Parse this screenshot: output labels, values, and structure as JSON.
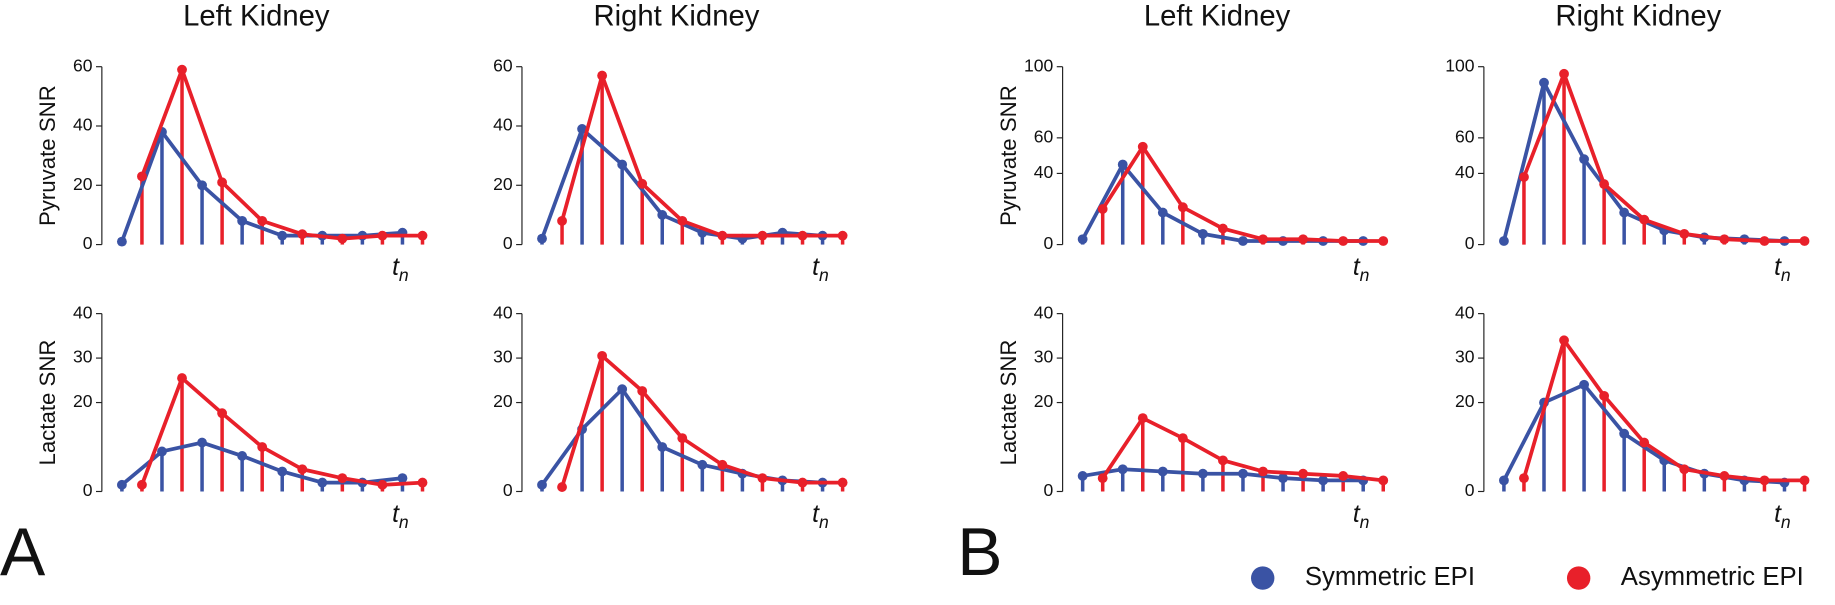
{
  "panel_labels": [
    "A",
    "B"
  ],
  "legend": {
    "position": "bottom-right",
    "entries": [
      {
        "name": "Symmetric EPI",
        "color": "#3a53a4"
      },
      {
        "name": "Asymmetric EPI",
        "color": "#e8202a"
      }
    ]
  },
  "chart_data": [
    {
      "type": "stem",
      "title": "Left Kidney",
      "y_label": "Pyruvate SNR",
      "x_label": "t",
      "x_label_subscript": "n",
      "xlim": [
        -1,
        15
      ],
      "ylim": [
        0,
        60
      ],
      "yticks": [
        0,
        20,
        40,
        60
      ],
      "series": [
        {
          "color": "#3a53a4",
          "x": [
            0,
            2,
            4,
            6,
            8,
            10,
            12,
            14
          ],
          "values": [
            1,
            38,
            20,
            8,
            3,
            3,
            3,
            4
          ]
        },
        {
          "color": "#e8202a",
          "x": [
            1,
            3,
            5,
            7,
            9,
            11,
            13,
            15
          ],
          "values": [
            23,
            59,
            21,
            8,
            3.5,
            2,
            3,
            3
          ]
        }
      ]
    },
    {
      "type": "stem",
      "title": "Right Kidney",
      "x_label": "t",
      "x_label_subscript": "n",
      "xlim": [
        -1,
        15
      ],
      "ylim": [
        0,
        60
      ],
      "yticks": [
        0,
        20,
        40,
        60
      ],
      "series": [
        {
          "color": "#3a53a4",
          "x": [
            0,
            2,
            4,
            6,
            8,
            10,
            12,
            14
          ],
          "values": [
            2,
            39,
            27,
            10,
            4,
            2,
            4,
            3
          ]
        },
        {
          "color": "#e8202a",
          "x": [
            1,
            3,
            5,
            7,
            9,
            11,
            13,
            15
          ],
          "values": [
            8,
            57,
            20.5,
            8,
            3,
            3,
            3,
            3
          ]
        }
      ]
    },
    {
      "type": "stem",
      "title": "Left Kidney",
      "y_label": "Pyruvate SNR",
      "x_label": "t",
      "x_label_subscript": "n",
      "xlim": [
        -1,
        15
      ],
      "ylim": [
        0,
        100
      ],
      "yticks": [
        0,
        40,
        60,
        100
      ],
      "series": [
        {
          "color": "#3a53a4",
          "x": [
            0,
            2,
            4,
            6,
            8,
            10,
            12,
            14
          ],
          "values": [
            3,
            45,
            18,
            6,
            2,
            2,
            2,
            2
          ]
        },
        {
          "color": "#e8202a",
          "x": [
            1,
            3,
            5,
            7,
            9,
            11,
            13,
            15
          ],
          "values": [
            20,
            55,
            21,
            9,
            3,
            3,
            2,
            2
          ]
        }
      ]
    },
    {
      "type": "stem",
      "title": "Right Kidney",
      "x_label": "t",
      "x_label_subscript": "n",
      "xlim": [
        -1,
        15
      ],
      "ylim": [
        0,
        100
      ],
      "yticks": [
        0,
        40,
        60,
        100
      ],
      "series": [
        {
          "color": "#3a53a4",
          "x": [
            0,
            2,
            4,
            6,
            8,
            10,
            12,
            14
          ],
          "values": [
            2,
            91,
            48,
            18,
            8,
            4,
            3,
            2
          ]
        },
        {
          "color": "#e8202a",
          "x": [
            1,
            3,
            5,
            7,
            9,
            11,
            13,
            15
          ],
          "values": [
            38,
            96,
            34,
            14,
            6,
            3,
            2,
            2
          ]
        }
      ]
    },
    {
      "type": "stem",
      "y_label": "Lactate SNR",
      "x_label": "t",
      "x_label_subscript": "n",
      "xlim": [
        -1,
        15
      ],
      "ylim": [
        0,
        40
      ],
      "yticks": [
        0,
        20,
        30,
        40
      ],
      "series": [
        {
          "color": "#3a53a4",
          "x": [
            0,
            2,
            4,
            6,
            8,
            10,
            12,
            14
          ],
          "values": [
            1.5,
            9,
            11,
            8,
            4.5,
            2,
            2,
            3
          ]
        },
        {
          "color": "#e8202a",
          "x": [
            1,
            3,
            5,
            7,
            9,
            11,
            13,
            15
          ],
          "values": [
            1.5,
            25.5,
            17.6,
            10,
            5,
            3,
            1.5,
            2
          ]
        }
      ]
    },
    {
      "type": "stem",
      "x_label": "t",
      "x_label_subscript": "n",
      "xlim": [
        -1,
        15
      ],
      "ylim": [
        0,
        40
      ],
      "yticks": [
        0,
        20,
        30,
        40
      ],
      "series": [
        {
          "color": "#3a53a4",
          "x": [
            0,
            2,
            4,
            6,
            8,
            10,
            12,
            14
          ],
          "values": [
            1.5,
            14,
            23,
            10,
            6,
            4,
            2.5,
            2
          ]
        },
        {
          "color": "#e8202a",
          "x": [
            1,
            3,
            5,
            7,
            9,
            11,
            13,
            15
          ],
          "values": [
            1,
            30.5,
            22.6,
            12,
            6,
            3,
            2,
            2
          ]
        }
      ]
    },
    {
      "type": "stem",
      "y_label": "Lactate SNR",
      "x_label": "t",
      "x_label_subscript": "n",
      "xlim": [
        -1,
        15
      ],
      "ylim": [
        0,
        40
      ],
      "yticks": [
        0,
        20,
        30,
        40
      ],
      "series": [
        {
          "color": "#3a53a4",
          "x": [
            0,
            2,
            4,
            6,
            8,
            10,
            12,
            14
          ],
          "values": [
            3.5,
            5,
            4.5,
            4,
            4,
            3,
            2.5,
            2.5
          ]
        },
        {
          "color": "#e8202a",
          "x": [
            1,
            3,
            5,
            7,
            9,
            11,
            13,
            15
          ],
          "values": [
            3,
            16.5,
            12,
            7,
            4.5,
            4,
            3.5,
            2.5
          ]
        }
      ]
    },
    {
      "type": "stem",
      "x_label": "t",
      "x_label_subscript": "n",
      "xlim": [
        -1,
        15
      ],
      "ylim": [
        0,
        40
      ],
      "yticks": [
        0,
        20,
        30,
        40
      ],
      "series": [
        {
          "color": "#3a53a4",
          "x": [
            0,
            2,
            4,
            6,
            8,
            10,
            12,
            14
          ],
          "values": [
            2.5,
            20,
            24,
            13,
            7,
            4,
            2.5,
            2
          ]
        },
        {
          "color": "#e8202a",
          "x": [
            1,
            3,
            5,
            7,
            9,
            11,
            13,
            15
          ],
          "values": [
            3,
            34,
            21.5,
            11,
            5,
            3.5,
            2.5,
            2.5
          ]
        }
      ]
    }
  ]
}
